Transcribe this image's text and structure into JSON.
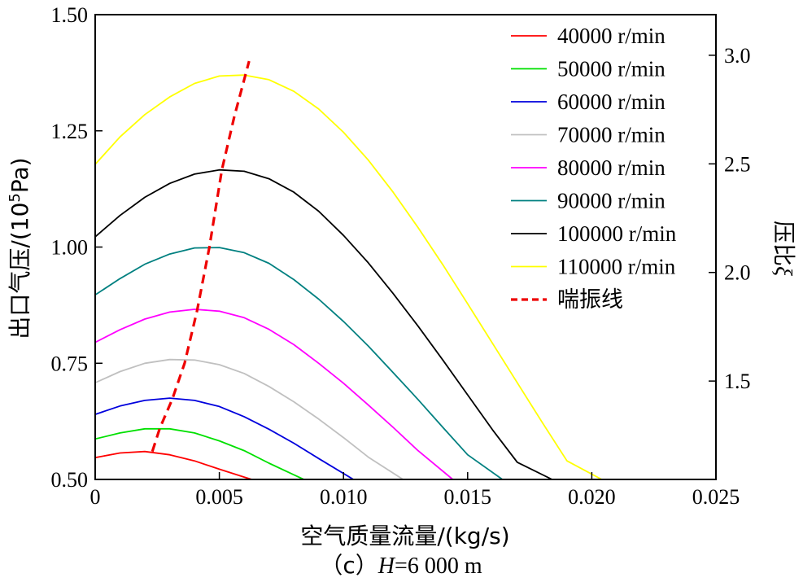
{
  "chart_data": {
    "type": "line",
    "caption_label": "（c）",
    "caption_var": "H",
    "caption_value": "=6 000 m",
    "xlabel": "空气质量流量/(kg/s)",
    "ylabel_main": "出口气压/(10",
    "ylabel_sup": "5",
    "ylabel_tail": "Pa)",
    "y2label_main": "压比",
    "y2label_sym": "ξ",
    "xlim": [
      0,
      0.025
    ],
    "ylim": [
      0.5,
      1.5
    ],
    "y2lim": [
      1.047,
      3.187
    ],
    "x_ticks": [
      "0",
      "0.005",
      "0.010",
      "0.015",
      "0.020",
      "0.025"
    ],
    "y_ticks": [
      "0.50",
      "0.75",
      "1.00",
      "1.25",
      "1.50"
    ],
    "y2_ticks": [
      "1.5",
      "2.0",
      "2.5",
      "3.0"
    ],
    "legend_position": "top-right",
    "series": [
      {
        "name": "40000 r/min",
        "color": "#ff0000",
        "x": [
          0,
          0.001,
          0.002,
          0.003,
          0.004,
          0.005,
          0.006,
          0.0063
        ],
        "y": [
          0.547,
          0.557,
          0.56,
          0.553,
          0.54,
          0.522,
          0.505,
          0.5
        ]
      },
      {
        "name": "50000 r/min",
        "color": "#00e000",
        "x": [
          0,
          0.001,
          0.002,
          0.003,
          0.004,
          0.005,
          0.006,
          0.007,
          0.008,
          0.0084
        ],
        "y": [
          0.587,
          0.6,
          0.609,
          0.609,
          0.6,
          0.583,
          0.562,
          0.535,
          0.51,
          0.5
        ]
      },
      {
        "name": "60000 r/min",
        "color": "#0000dd",
        "x": [
          0,
          0.001,
          0.002,
          0.003,
          0.004,
          0.005,
          0.006,
          0.007,
          0.008,
          0.009,
          0.0104
        ],
        "y": [
          0.64,
          0.658,
          0.67,
          0.675,
          0.67,
          0.657,
          0.635,
          0.608,
          0.578,
          0.545,
          0.5
        ]
      },
      {
        "name": "70000 r/min",
        "color": "#c0c0c0",
        "x": [
          0,
          0.001,
          0.002,
          0.003,
          0.004,
          0.005,
          0.006,
          0.007,
          0.008,
          0.009,
          0.01,
          0.011,
          0.0124
        ],
        "y": [
          0.708,
          0.732,
          0.75,
          0.758,
          0.757,
          0.747,
          0.728,
          0.7,
          0.667,
          0.63,
          0.59,
          0.548,
          0.5
        ]
      },
      {
        "name": "80000 r/min",
        "color": "#ff00ff",
        "x": [
          0,
          0.001,
          0.002,
          0.003,
          0.004,
          0.005,
          0.006,
          0.007,
          0.008,
          0.009,
          0.01,
          0.011,
          0.012,
          0.013,
          0.0144
        ],
        "y": [
          0.795,
          0.822,
          0.845,
          0.86,
          0.866,
          0.862,
          0.848,
          0.823,
          0.79,
          0.75,
          0.707,
          0.66,
          0.612,
          0.562,
          0.5
        ]
      },
      {
        "name": "90000 r/min",
        "color": "#008080",
        "x": [
          0,
          0.001,
          0.002,
          0.003,
          0.004,
          0.005,
          0.006,
          0.007,
          0.008,
          0.009,
          0.01,
          0.011,
          0.012,
          0.013,
          0.014,
          0.015,
          0.0164
        ],
        "y": [
          0.897,
          0.932,
          0.963,
          0.985,
          0.998,
          0.999,
          0.988,
          0.965,
          0.93,
          0.888,
          0.84,
          0.787,
          0.73,
          0.672,
          0.612,
          0.553,
          0.5
        ]
      },
      {
        "name": "100000 r/min",
        "color": "#000000",
        "x": [
          0,
          0.001,
          0.002,
          0.003,
          0.004,
          0.005,
          0.006,
          0.007,
          0.008,
          0.009,
          0.01,
          0.011,
          0.012,
          0.013,
          0.014,
          0.015,
          0.016,
          0.017,
          0.0184
        ],
        "y": [
          1.022,
          1.068,
          1.107,
          1.137,
          1.157,
          1.166,
          1.163,
          1.147,
          1.118,
          1.077,
          1.025,
          0.966,
          0.9,
          0.83,
          0.757,
          0.682,
          0.607,
          0.537,
          0.5
        ]
      },
      {
        "name": "110000 r/min",
        "color": "#ffff00",
        "x": [
          0,
          0.001,
          0.002,
          0.003,
          0.004,
          0.005,
          0.006,
          0.007,
          0.008,
          0.009,
          0.01,
          0.011,
          0.012,
          0.013,
          0.014,
          0.015,
          0.016,
          0.017,
          0.018,
          0.019,
          0.0204
        ],
        "y": [
          1.178,
          1.237,
          1.285,
          1.323,
          1.352,
          1.368,
          1.37,
          1.36,
          1.335,
          1.297,
          1.247,
          1.187,
          1.118,
          1.042,
          0.962,
          0.878,
          0.793,
          0.708,
          0.623,
          0.54,
          0.5
        ]
      },
      {
        "name": "喘振线",
        "color": "#ee0000",
        "dashed": true,
        "x": [
          0.0023,
          0.0026,
          0.0031,
          0.0036,
          0.0041,
          0.0046,
          0.0051,
          0.0056,
          0.0062
        ],
        "y": [
          0.56,
          0.61,
          0.672,
          0.75,
          0.862,
          1.0,
          1.166,
          1.28,
          1.4
        ]
      }
    ]
  }
}
